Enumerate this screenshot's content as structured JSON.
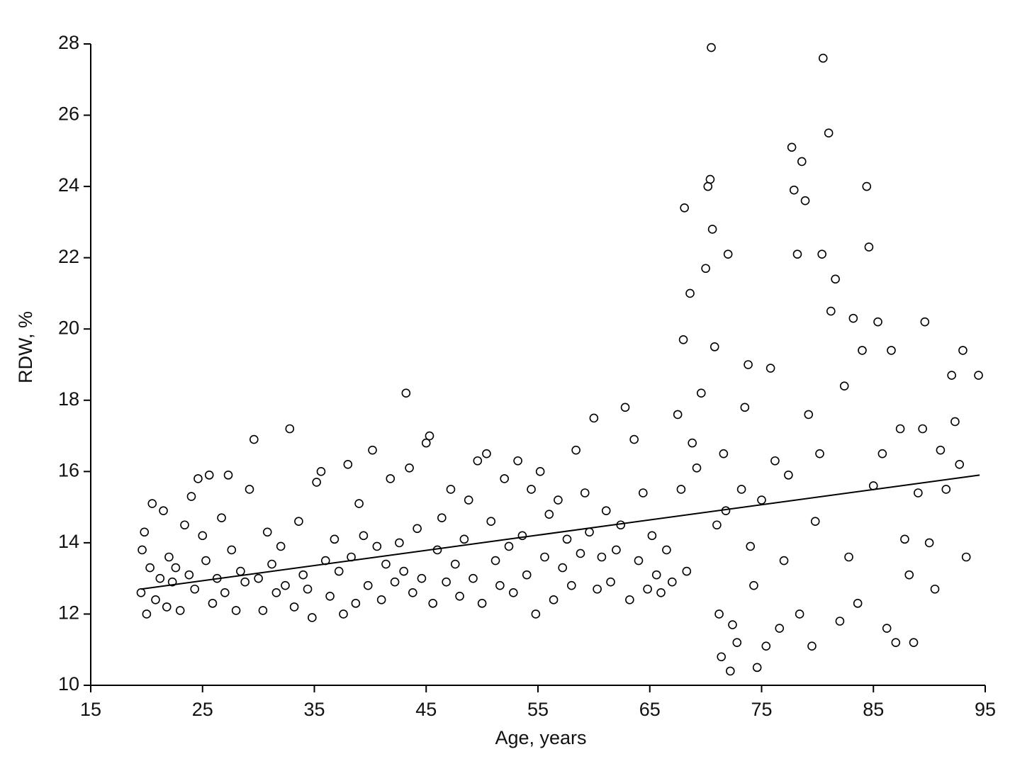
{
  "chart_data": {
    "type": "scatter",
    "xlabel": "Age, years",
    "ylabel": "RDW, %",
    "xlim": [
      15,
      95
    ],
    "xticks": [
      15,
      25,
      35,
      45,
      55,
      65,
      75,
      85,
      95
    ],
    "ylim": [
      10,
      28
    ],
    "yticks": [
      10,
      12,
      14,
      16,
      18,
      20,
      22,
      24,
      26,
      28
    ],
    "color": "#000000",
    "series": [
      {
        "type": "scatter",
        "x": [
          19.5,
          19.6,
          19.8,
          20,
          20.3,
          20.5,
          20.8,
          21.2,
          21.5,
          21.8,
          22,
          22.3,
          22.6,
          23,
          23.4,
          23.8,
          24,
          24.3,
          24.6,
          25,
          25.3,
          25.6,
          25.9,
          26.3,
          26.7,
          27,
          27.3,
          27.6,
          28,
          28.4,
          28.8,
          29.2,
          29.6,
          30,
          30.4,
          30.8,
          31.2,
          31.6,
          32,
          32.4,
          32.8,
          33.2,
          33.6,
          34,
          34.4,
          34.8,
          35.2,
          35.6,
          36,
          36.4,
          36.8,
          37.2,
          37.6,
          38,
          38.3,
          38.7,
          39,
          39.4,
          39.8,
          40.2,
          40.6,
          41,
          41.4,
          41.8,
          42.2,
          42.6,
          43,
          43.2,
          43.5,
          43.8,
          44.2,
          44.6,
          45,
          45.3,
          45.6,
          46,
          46.4,
          46.8,
          47.2,
          47.6,
          48,
          48.4,
          48.8,
          49.2,
          49.6,
          50,
          50.4,
          50.8,
          51.2,
          51.6,
          52,
          52.4,
          52.8,
          53.2,
          53.6,
          54,
          54.4,
          54.8,
          55.2,
          55.6,
          56,
          56.4,
          56.8,
          57.2,
          57.6,
          58,
          58.4,
          58.8,
          59.2,
          59.6,
          60,
          60.3,
          60.7,
          61.1,
          61.5,
          62,
          62.4,
          62.8,
          63.2,
          63.6,
          64,
          64.4,
          64.8,
          65.2,
          65.6,
          66,
          66.5,
          67,
          67.5,
          67.8,
          68,
          68.1,
          68.3,
          68.6,
          68.8,
          69.2,
          69.6,
          70,
          70.2,
          70.4,
          70.5,
          70.6,
          70.8,
          71,
          71.2,
          71.4,
          71.6,
          71.8,
          72,
          72.2,
          72.4,
          72.8,
          73.2,
          73.5,
          73.8,
          74,
          74.3,
          74.6,
          75,
          75.4,
          75.8,
          76.2,
          76.6,
          77,
          77.4,
          77.7,
          77.9,
          78.2,
          78.4,
          78.6,
          78.9,
          79.2,
          79.5,
          79.8,
          80.2,
          80.4,
          80.5,
          81,
          81.2,
          81.6,
          82,
          82.4,
          82.8,
          83.2,
          83.6,
          84,
          84.4,
          84.6,
          85,
          85.4,
          85.8,
          86.2,
          86.6,
          87,
          87.4,
          87.8,
          88.2,
          88.6,
          89,
          89.4,
          89.6,
          90,
          90.5,
          91,
          91.5,
          92,
          92.3,
          92.7,
          93,
          93.3,
          94.4
        ],
        "values": [
          12.6,
          13.8,
          14.3,
          12.0,
          13.3,
          15.1,
          12.4,
          13.0,
          14.9,
          12.2,
          13.6,
          12.9,
          13.3,
          12.1,
          14.5,
          13.1,
          15.3,
          12.7,
          15.8,
          14.2,
          13.5,
          15.9,
          12.3,
          13.0,
          14.7,
          12.6,
          15.9,
          13.8,
          12.1,
          13.2,
          12.9,
          15.5,
          16.9,
          13.0,
          12.1,
          14.3,
          13.4,
          12.6,
          13.9,
          12.8,
          17.2,
          12.2,
          14.6,
          13.1,
          12.7,
          11.9,
          15.7,
          16.0,
          13.5,
          12.5,
          14.1,
          13.2,
          12.0,
          16.2,
          13.6,
          12.3,
          15.1,
          14.2,
          12.8,
          16.6,
          13.9,
          12.4,
          13.4,
          15.8,
          12.9,
          14.0,
          13.2,
          18.2,
          16.1,
          12.6,
          14.4,
          13.0,
          16.8,
          17.0,
          12.3,
          13.8,
          14.7,
          12.9,
          15.5,
          13.4,
          12.5,
          14.1,
          15.2,
          13.0,
          16.3,
          12.3,
          16.5,
          14.6,
          13.5,
          12.8,
          15.8,
          13.9,
          12.6,
          16.3,
          14.2,
          13.1,
          15.5,
          12.0,
          16.0,
          13.6,
          14.8,
          12.4,
          15.2,
          13.3,
          14.1,
          12.8,
          16.6,
          13.7,
          15.4,
          14.3,
          17.5,
          12.7,
          13.6,
          14.9,
          12.9,
          13.8,
          14.5,
          17.8,
          12.4,
          16.9,
          13.5,
          15.4,
          12.7,
          14.2,
          13.1,
          12.6,
          13.8,
          12.9,
          17.6,
          15.5,
          19.7,
          23.4,
          13.2,
          21.0,
          16.8,
          16.1,
          18.2,
          21.7,
          24.0,
          24.2,
          27.9,
          22.8,
          19.5,
          14.5,
          12.0,
          10.8,
          16.5,
          14.9,
          22.1,
          10.4,
          11.7,
          11.2,
          15.5,
          17.8,
          19.0,
          13.9,
          12.8,
          10.5,
          15.2,
          11.1,
          18.9,
          16.3,
          11.6,
          13.5,
          15.9,
          25.1,
          23.9,
          22.1,
          12.0,
          24.7,
          23.6,
          17.6,
          11.1,
          14.6,
          16.5,
          22.1,
          27.6,
          25.5,
          20.5,
          21.4,
          11.8,
          18.4,
          13.6,
          20.3,
          12.3,
          19.4,
          24.0,
          22.3,
          15.6,
          20.2,
          16.5,
          11.6,
          19.4,
          11.2,
          17.2,
          14.1,
          13.1,
          11.2,
          15.4,
          17.2,
          20.2,
          14.0,
          12.7,
          16.6,
          15.5,
          18.7,
          17.4,
          16.2,
          19.4,
          13.6,
          18.7
        ]
      },
      {
        "type": "line",
        "x": [
          19.5,
          94.5
        ],
        "values": [
          12.7,
          15.9
        ]
      }
    ]
  }
}
